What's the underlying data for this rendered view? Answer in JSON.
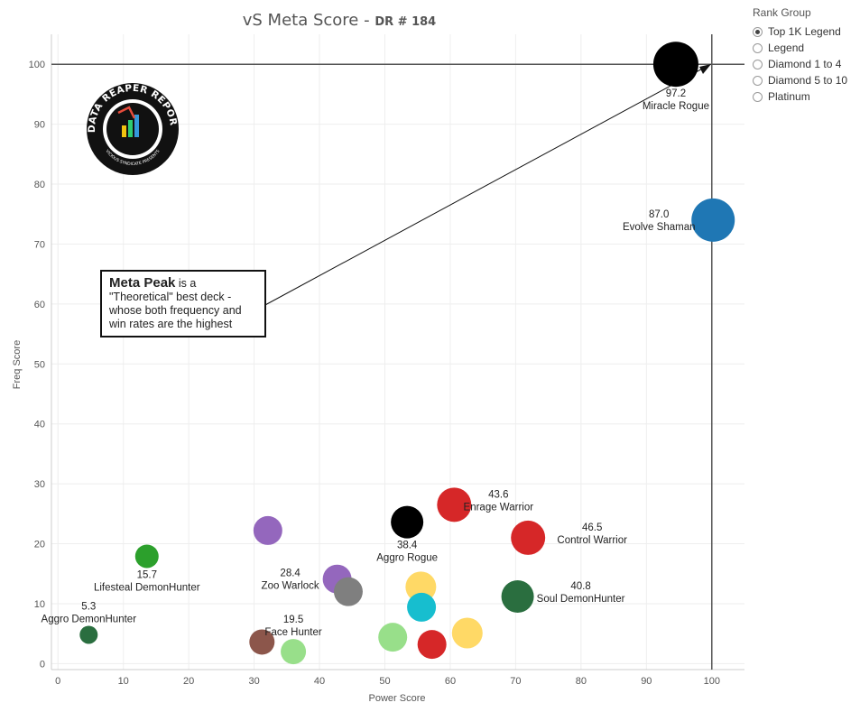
{
  "chart_data": {
    "type": "scatter",
    "title": "vS Meta Score",
    "subtitle": "DR # 184",
    "xlabel": "Power Score",
    "ylabel": "Freq Score",
    "xlim": [
      -1,
      105
    ],
    "ylim": [
      -1,
      105
    ],
    "xticks": [
      0,
      10,
      20,
      30,
      40,
      50,
      60,
      70,
      80,
      90,
      100
    ],
    "yticks": [
      0,
      10,
      20,
      30,
      40,
      50,
      60,
      70,
      80,
      90,
      100
    ],
    "grid": true,
    "reference_lines": {
      "x": 100,
      "y": 100
    },
    "points": [
      {
        "x": 94.5,
        "y": 100.0,
        "size": 25,
        "color": "#000000",
        "name": "Miracle Rogue",
        "score": "97.2",
        "label_pos": "below"
      },
      {
        "x": 100.2,
        "y": 74.0,
        "size": 24,
        "color": "#1f77b4",
        "name": "Evolve Shaman",
        "score": "87.0",
        "label_pos": "left"
      },
      {
        "x": 60.6,
        "y": 26.5,
        "size": 19,
        "color": "#d62728",
        "name": "Enrage Warrior",
        "score": "43.6",
        "label_pos": "right"
      },
      {
        "x": 71.9,
        "y": 21.0,
        "size": 19,
        "color": "#d62728",
        "name": "Control Warrior",
        "score": "46.5",
        "label_pos": "right"
      },
      {
        "x": 53.4,
        "y": 23.6,
        "size": 18,
        "color": "#000000",
        "name": "Aggro Rogue",
        "score": "38.4",
        "label_pos": "below"
      },
      {
        "x": 70.3,
        "y": 11.2,
        "size": 18,
        "color": "#2a6e3f",
        "name": "Soul DemonHunter",
        "score": "40.8",
        "label_pos": "right"
      },
      {
        "x": 42.7,
        "y": 14.1,
        "size": 16,
        "color": "#9467bd",
        "name": "Zoo Warlock",
        "score": "28.4",
        "label_pos": "left"
      },
      {
        "x": 32.1,
        "y": 22.2,
        "size": 16,
        "color": "#9467bd",
        "name": "",
        "score": ""
      },
      {
        "x": 44.4,
        "y": 12.0,
        "size": 16,
        "color": "#7f7f7f",
        "name": "",
        "score": ""
      },
      {
        "x": 55.5,
        "y": 12.8,
        "size": 17,
        "color": "#ffd966",
        "name": "",
        "score": ""
      },
      {
        "x": 55.6,
        "y": 9.4,
        "size": 16,
        "color": "#17becf",
        "name": "",
        "score": ""
      },
      {
        "x": 62.6,
        "y": 5.1,
        "size": 17,
        "color": "#ffd966",
        "name": "",
        "score": ""
      },
      {
        "x": 51.2,
        "y": 4.4,
        "size": 16,
        "color": "#98df8a",
        "name": "",
        "score": ""
      },
      {
        "x": 57.2,
        "y": 3.2,
        "size": 16,
        "color": "#d62728",
        "name": "",
        "score": ""
      },
      {
        "x": 31.2,
        "y": 3.6,
        "size": 14,
        "color": "#8c564b",
        "name": "",
        "score": ""
      },
      {
        "x": 36.0,
        "y": 2.0,
        "size": 14,
        "color": "#98df8a",
        "name": "Face Hunter",
        "score": "19.5",
        "label_pos": "above"
      },
      {
        "x": 13.6,
        "y": 17.9,
        "size": 13,
        "color": "#2ca02c",
        "name": "Lifesteal DemonHunter",
        "score": "15.7",
        "label_pos": "below"
      },
      {
        "x": 4.7,
        "y": 4.8,
        "size": 10,
        "color": "#2a6e3f",
        "name": "Aggro DemonHunter",
        "score": "5.3",
        "label_pos": "above"
      }
    ]
  },
  "annotation": {
    "bold": "Meta Peak",
    "text": " is a \"Theoretical\" best deck - whose both frequency and win rates are the highest"
  },
  "legend": {
    "title": "Rank Group",
    "options": [
      "Top 1K Legend",
      "Legend",
      "Diamond 1 to 4",
      "Diamond 5 to 10",
      "Platinum"
    ],
    "selected": "Top 1K Legend"
  },
  "logo": {
    "text_top": "DATA REAPER REPORT",
    "text_bottom": "VICIOUS SYNDICATE PRESENTS"
  }
}
